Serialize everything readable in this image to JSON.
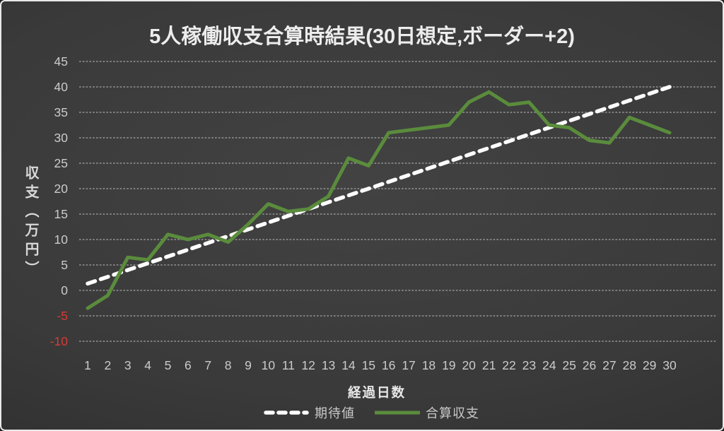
{
  "chart_data": {
    "type": "line",
    "title": "5人稼働収支合算時結果(30日想定,ボーダー+2)",
    "xlabel": "経過日数",
    "ylabel": "収支（万円）",
    "x": [
      1,
      2,
      3,
      4,
      5,
      6,
      7,
      8,
      9,
      10,
      11,
      12,
      13,
      14,
      15,
      16,
      17,
      18,
      19,
      20,
      21,
      22,
      23,
      24,
      25,
      26,
      27,
      28,
      29,
      30
    ],
    "ylim": [
      -10,
      45
    ],
    "ytick_step": 5,
    "yticks": [
      45,
      40,
      35,
      30,
      25,
      20,
      15,
      10,
      5,
      0,
      -5,
      -10
    ],
    "grid": true,
    "grid_style": "dashed",
    "grid_color": "#a6a6a6",
    "tick_color": "#cbcbcb",
    "negative_tick_color": "#d83a34",
    "legend_position": "bottom",
    "series": [
      {
        "name": "期待値",
        "color": "#fdfdfd",
        "dash": true,
        "values": [
          1.33,
          2.67,
          4,
          5.33,
          6.67,
          8,
          9.33,
          10.67,
          12,
          13.33,
          14.67,
          16,
          17.33,
          18.67,
          20,
          21.33,
          22.67,
          24,
          25.33,
          26.67,
          28,
          29.33,
          30.67,
          32,
          33.33,
          34.67,
          36,
          37.33,
          38.67,
          40
        ]
      },
      {
        "name": "合算収支",
        "color": "#5a8c3c",
        "dash": false,
        "values": [
          -3.5,
          -1,
          6.5,
          6,
          11,
          10,
          11,
          9.5,
          13,
          17,
          15.5,
          16,
          18.5,
          26,
          24.5,
          31,
          31.5,
          32,
          32.5,
          37,
          39,
          36.5,
          37,
          32.5,
          32,
          29.5,
          29,
          34,
          32.5,
          31
        ]
      }
    ]
  }
}
